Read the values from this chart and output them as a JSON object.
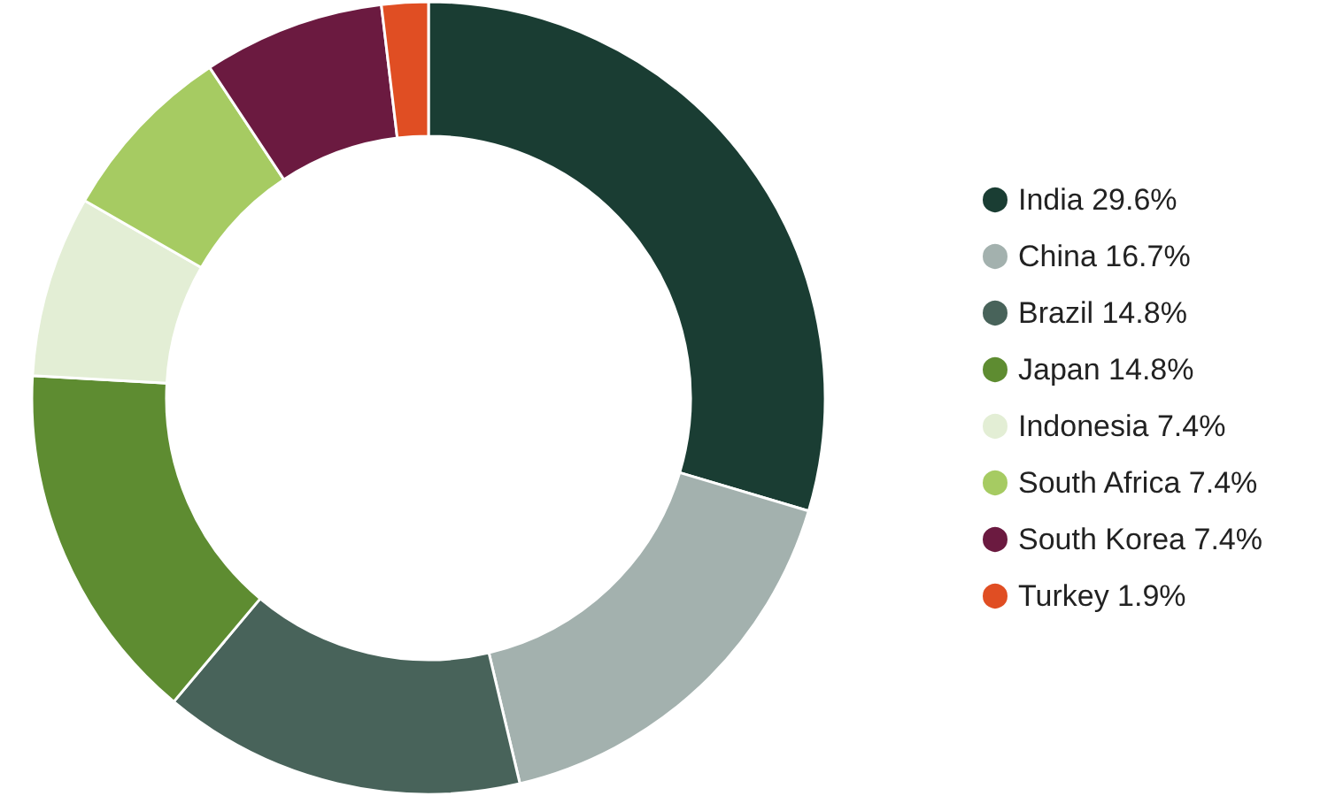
{
  "chart_data": {
    "type": "donut",
    "categories": [
      "India",
      "China",
      "Brazil",
      "Japan",
      "Indonesia",
      "South Africa",
      "South Korea",
      "Turkey"
    ],
    "values": [
      29.6,
      16.7,
      14.8,
      14.8,
      7.4,
      7.4,
      7.4,
      1.9
    ],
    "value_labels": [
      "29.6%",
      "16.7%",
      "14.8%",
      "14.8%",
      "7.4%",
      "7.4%",
      "7.4%",
      "1.9%"
    ],
    "colors": [
      "#1a3d33",
      "#a3b1ae",
      "#48635a",
      "#5e8c31",
      "#e3eed5",
      "#a6cb62",
      "#6b1a40",
      "#e04e23"
    ],
    "legend": "right"
  }
}
